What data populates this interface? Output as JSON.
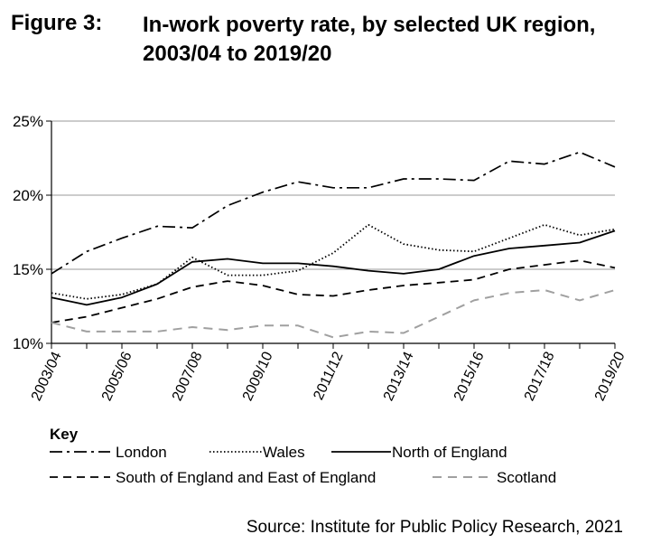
{
  "figure": {
    "number": "Figure 3:",
    "title": "In-work poverty rate, by selected UK region, 2003/04 to 2019/20"
  },
  "source": "Source: Institute for Public Policy Research, 2021",
  "chart_data": {
    "type": "line",
    "title": "In-work poverty rate, by selected UK region, 2003/04 to 2019/20",
    "xlabel": "",
    "ylabel": "",
    "ylim": [
      10,
      25
    ],
    "yticks": [
      "10%",
      "15%",
      "20%",
      "25%"
    ],
    "ytick_values": [
      10,
      15,
      20,
      25
    ],
    "x": [
      "2003/04",
      "2004/05",
      "2005/06",
      "2006/07",
      "2007/08",
      "2008/09",
      "2009/10",
      "2010/11",
      "2011/12",
      "2012/13",
      "2013/14",
      "2014/15",
      "2015/16",
      "2016/17",
      "2017/18",
      "2018/19",
      "2019/20"
    ],
    "xtick_labels": [
      "2003/04",
      "2005/06",
      "2007/08",
      "2009/10",
      "2011/12",
      "2013/14",
      "2015/16",
      "2017/18",
      "2019/20"
    ],
    "legend_title": "Key",
    "legend_position": "bottom",
    "grid": "horizontal",
    "series": [
      {
        "name": "London",
        "style": "dashdot",
        "color": "#000000",
        "values": [
          14.7,
          16.2,
          17.1,
          17.9,
          17.8,
          19.3,
          20.2,
          20.9,
          20.5,
          20.5,
          21.1,
          21.1,
          21.0,
          22.3,
          22.1,
          22.9,
          21.9
        ]
      },
      {
        "name": "Wales",
        "style": "dotted",
        "color": "#000000",
        "values": [
          13.4,
          13.0,
          13.3,
          14.0,
          15.8,
          14.6,
          14.6,
          14.9,
          16.1,
          18.0,
          16.7,
          16.3,
          16.2,
          17.1,
          18.0,
          17.3,
          17.7
        ]
      },
      {
        "name": "North of England",
        "style": "solid",
        "color": "#000000",
        "values": [
          13.1,
          12.6,
          13.1,
          14.0,
          15.5,
          15.7,
          15.4,
          15.4,
          15.2,
          14.9,
          14.7,
          15.0,
          15.9,
          16.4,
          16.6,
          16.8,
          17.6
        ]
      },
      {
        "name": "South of England and East of England",
        "style": "dashed",
        "color": "#000000",
        "values": [
          11.4,
          11.8,
          12.4,
          13.0,
          13.8,
          14.2,
          13.9,
          13.3,
          13.2,
          13.6,
          13.9,
          14.1,
          14.3,
          15.0,
          15.3,
          15.6,
          15.1
        ]
      },
      {
        "name": "Scotland",
        "style": "dashed-gray",
        "color": "#a0a0a0",
        "values": [
          11.4,
          10.8,
          10.8,
          10.8,
          11.1,
          10.9,
          11.2,
          11.2,
          10.4,
          10.8,
          10.7,
          11.8,
          12.9,
          13.4,
          13.6,
          12.9,
          13.6
        ]
      }
    ]
  }
}
